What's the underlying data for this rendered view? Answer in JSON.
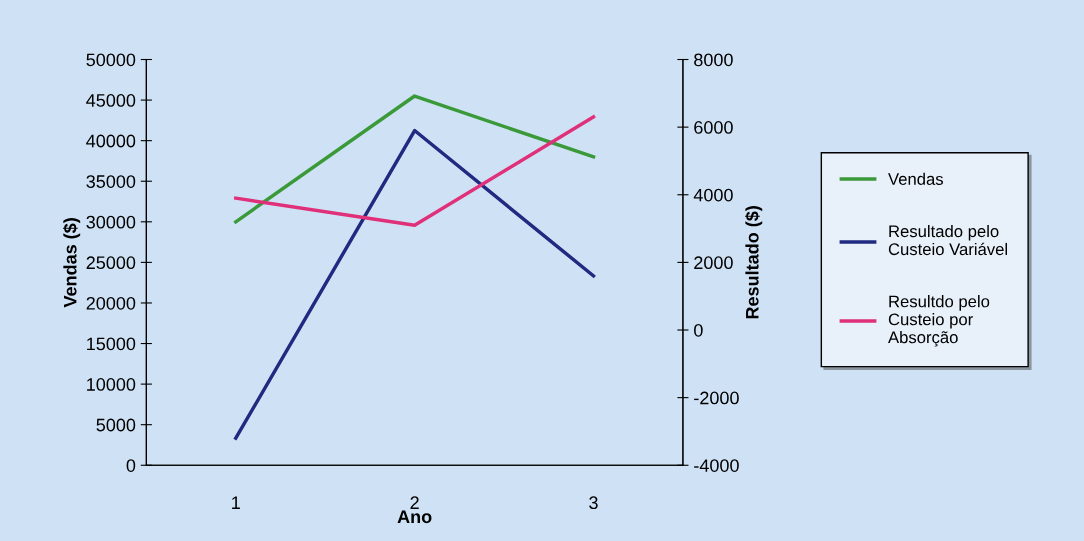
{
  "chart_data": {
    "type": "line",
    "xlabel": "Ano",
    "ylabel": "Vendas ($)",
    "y2label": "Resultado ($)",
    "categories": [
      "1",
      "2",
      "3"
    ],
    "series": [
      {
        "name": "Vendas",
        "color": "#3a9a3a",
        "values": [
          30000,
          45500,
          38000
        ]
      },
      {
        "name": "Resultado pelo\nCusteio Variável",
        "color": "#1f2a80",
        "values": [
          -3200,
          5900,
          1600
        ],
        "axis": "y2"
      },
      {
        "name": "Resultdo pelo\nCusteio por\nAbsorção",
        "color": "#e0307a",
        "values": [
          3900,
          3100,
          6300
        ],
        "axis": "y2"
      }
    ],
    "ylim": [
      0,
      50000
    ],
    "yticks": [
      0,
      5000,
      10000,
      15000,
      20000,
      25000,
      30000,
      35000,
      40000,
      45000,
      50000
    ],
    "y2lim": [
      -4000,
      8000
    ],
    "y2ticks": [
      -4000,
      -2000,
      0,
      2000,
      4000,
      6000,
      8000
    ],
    "grid": false,
    "legend": "right",
    "marker": "none",
    "line_style": "solid"
  }
}
